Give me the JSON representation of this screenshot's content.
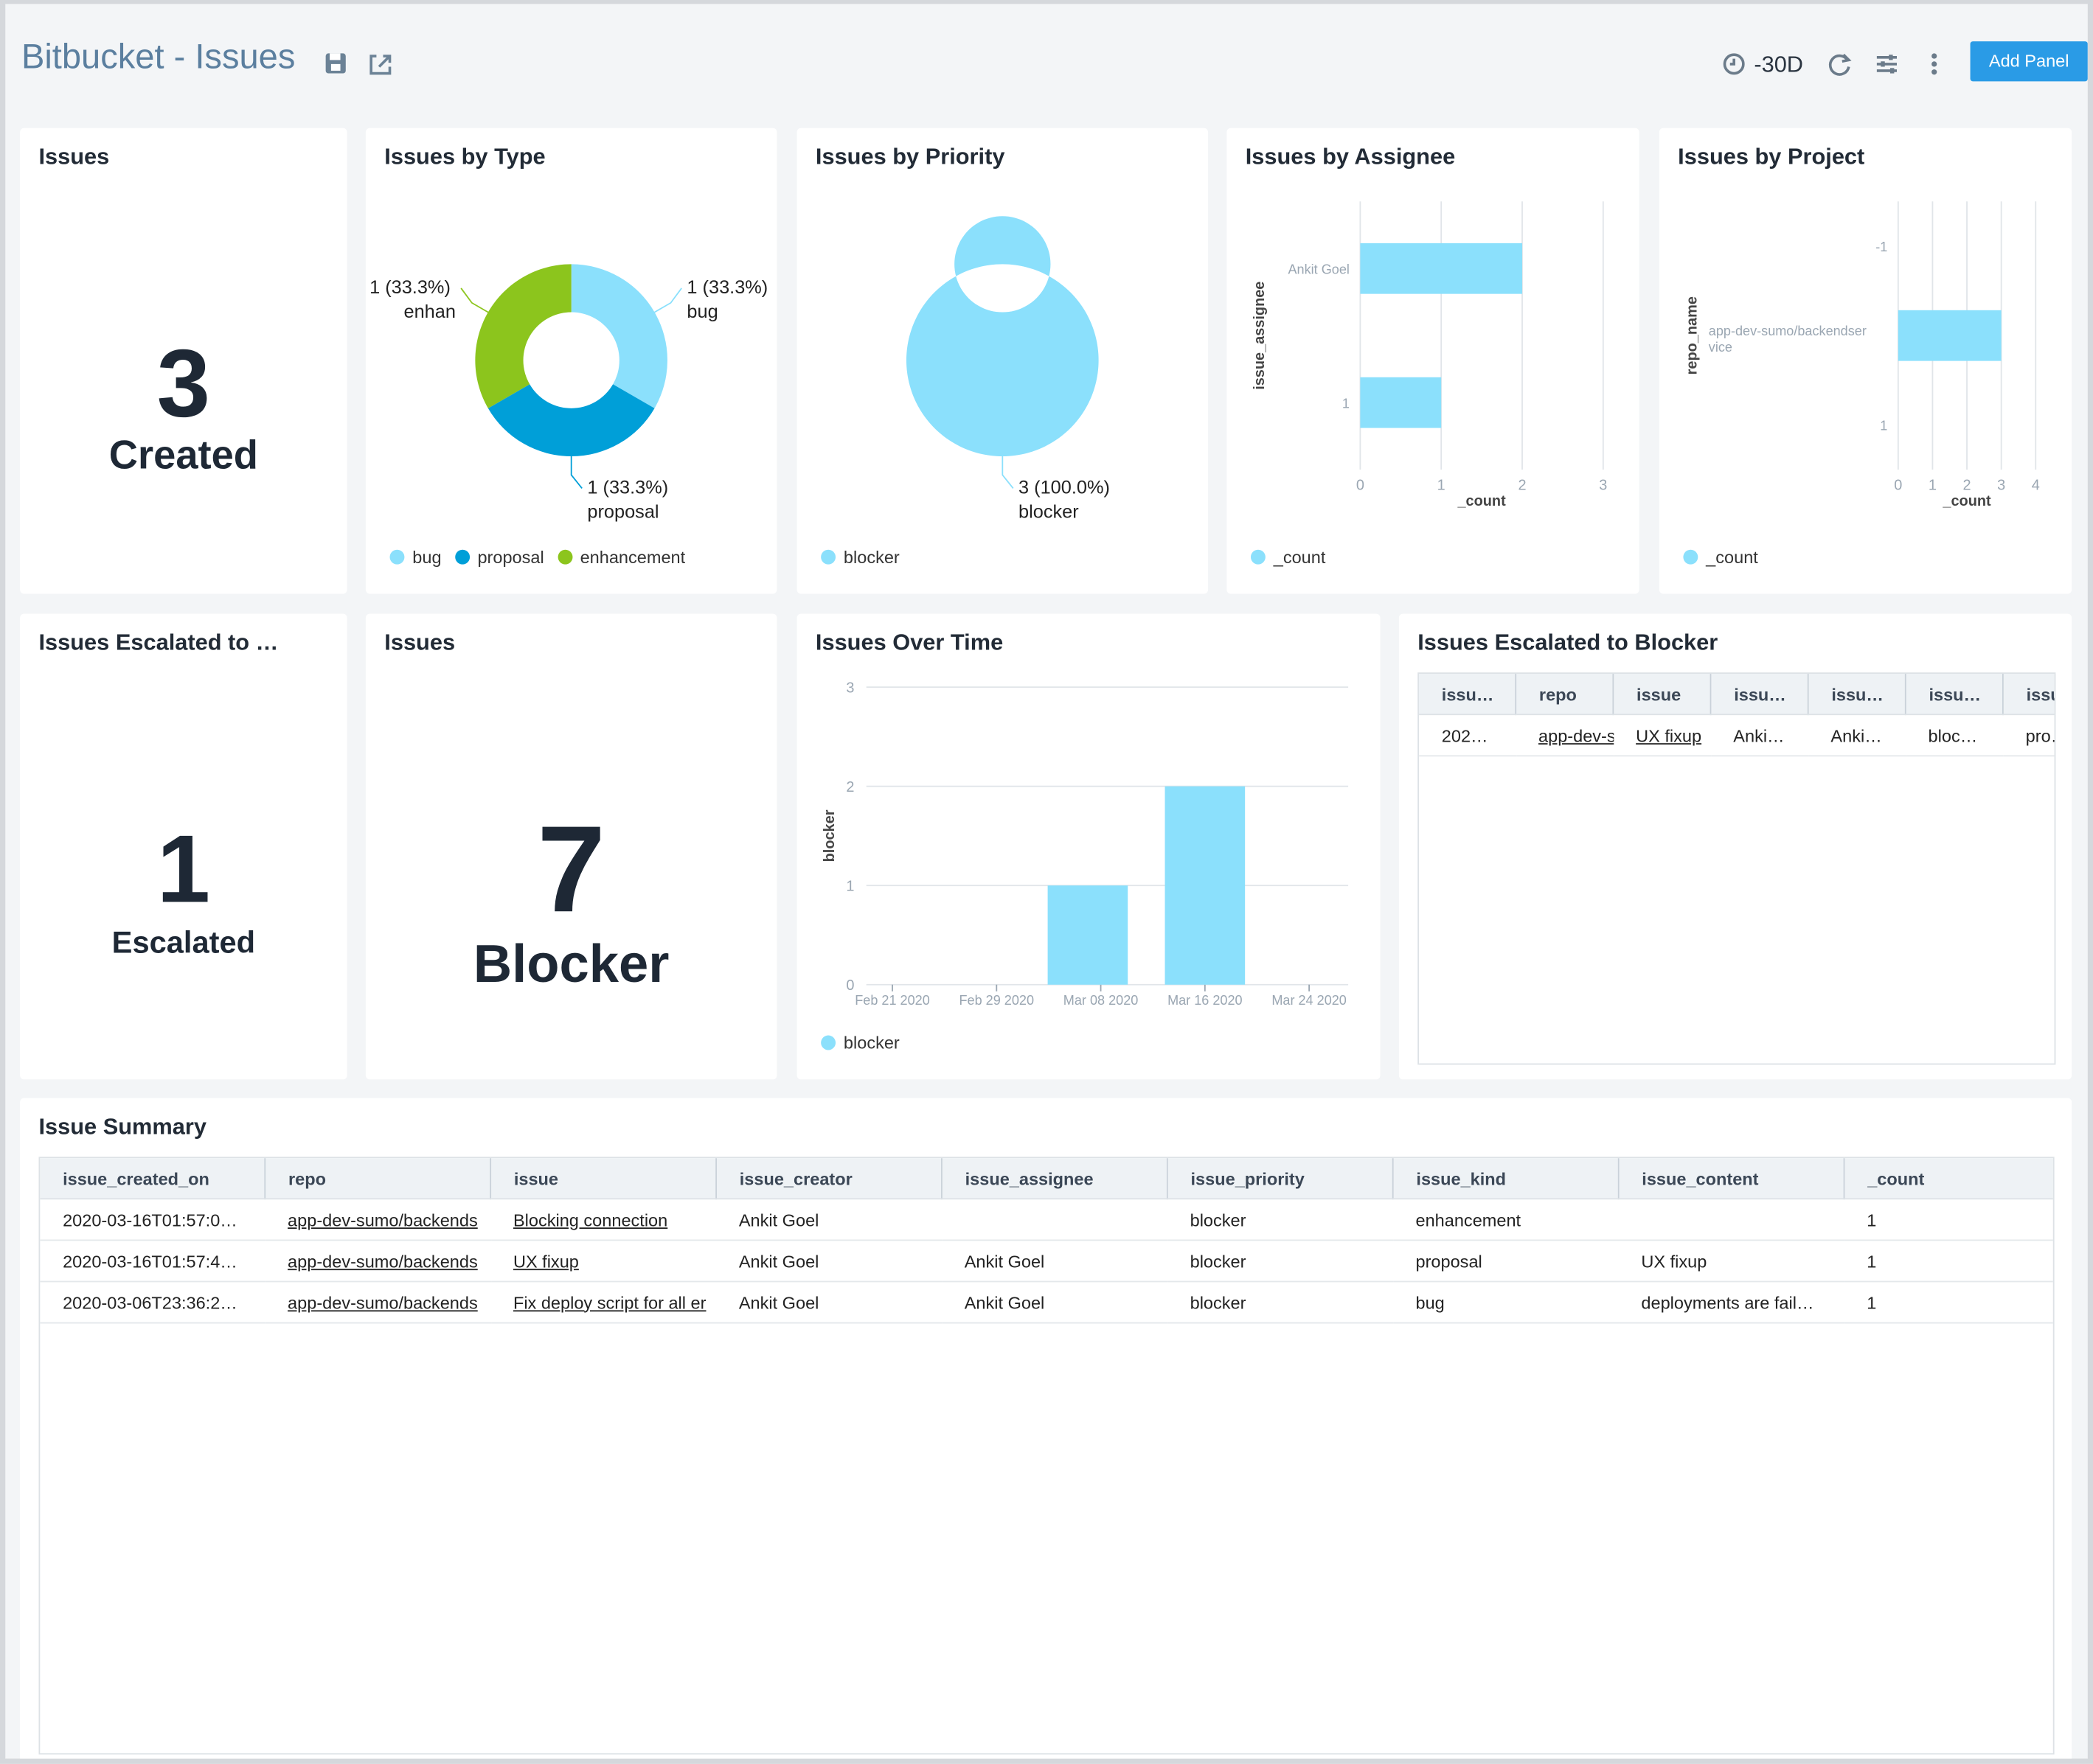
{
  "header": {
    "title": "Bitbucket - Issues",
    "time_range": "-30D",
    "add_panel": "Add Panel"
  },
  "issues_created": {
    "title": "Issues",
    "value": 3,
    "label": "Created"
  },
  "issues_by_type": {
    "title": "Issues by Type",
    "type": "donut",
    "categories": [
      "bug",
      "proposal",
      "enhancement"
    ],
    "values": [
      1,
      1,
      1
    ],
    "value_labels": [
      "1 (33.3%) bug",
      "1 (33.3%) proposal",
      "1 (33.3%) enhan"
    ],
    "colors": [
      "#8be0fc",
      "#009fd8",
      "#8cc51d"
    ]
  },
  "issues_by_priority": {
    "title": "Issues by Priority",
    "type": "donut",
    "categories": [
      "blocker"
    ],
    "values": [
      3
    ],
    "value_labels": [
      "3 (100.0%) blocker"
    ],
    "colors": [
      "#8be0fc"
    ]
  },
  "issues_by_assignee": {
    "title": "Issues by Assignee",
    "type": "hbar",
    "categories": [
      "Ankit Goel",
      "1"
    ],
    "series": [
      {
        "name": "_count",
        "color": "#8be0fc",
        "values": [
          2,
          1
        ]
      }
    ],
    "xlabel": "_count",
    "ylabel": "issue_assignee",
    "xlim": [
      0,
      3
    ],
    "xticks": [
      0,
      1,
      2,
      3
    ]
  },
  "issues_by_project": {
    "title": "Issues by Project",
    "type": "hbar",
    "categories": [
      "-1",
      "app-dev-sumo/backendservice",
      "1"
    ],
    "series": [
      {
        "name": "_count",
        "color": "#8be0fc",
        "values": [
          null,
          3,
          null
        ]
      }
    ],
    "xlabel": "_count",
    "ylabel": "repo_name",
    "xlim": [
      0,
      4
    ],
    "xticks": [
      0,
      1,
      2,
      3,
      4
    ]
  },
  "issues_escalated": {
    "title": "Issues Escalated to …",
    "value": 1,
    "label": "Escalated"
  },
  "issues_blocker": {
    "title": "Issues",
    "value": 7,
    "label": "Blocker"
  },
  "issues_over_time": {
    "title": "Issues Over Time",
    "type": "bar",
    "x": [
      "Mar 07 2020",
      "Mar 16 2020"
    ],
    "series": [
      {
        "name": "blocker",
        "color": "#8be0fc",
        "values": [
          1,
          2
        ]
      }
    ],
    "ylabel": "blocker",
    "xlim": [
      "Feb 19 2020",
      "Mar 27 2020"
    ],
    "xticks": [
      "Feb 21 2020",
      "Feb 29 2020",
      "Mar 08 2020",
      "Mar 16 2020",
      "Mar 24 2020"
    ],
    "ylim": [
      0,
      3
    ],
    "yticks": [
      0,
      1,
      2,
      3
    ],
    "grid": true
  },
  "escalated_table": {
    "title": "Issues Escalated to Blocker",
    "link_columns": [
      1,
      2
    ],
    "columns": [
      "issu…",
      "repo",
      "issue",
      "issu…",
      "issu…",
      "issu…",
      "issu."
    ],
    "rows": [
      [
        "202…",
        "app-dev-s",
        "UX fixup",
        "Anki…",
        "Anki…",
        "bloc…",
        "pro…"
      ]
    ]
  },
  "issue_summary": {
    "title": "Issue Summary",
    "link_columns": [
      1,
      2
    ],
    "columns": [
      "issue_created_on",
      "repo",
      "issue",
      "issue_creator",
      "issue_assignee",
      "issue_priority",
      "issue_kind",
      "issue_content",
      "_count"
    ],
    "rows": [
      [
        "2020-03-16T01:57:0…",
        "app-dev-sumo/backends",
        "Blocking connection",
        "Ankit Goel",
        "",
        "blocker",
        "enhancement",
        "",
        "1"
      ],
      [
        "2020-03-16T01:57:4…",
        "app-dev-sumo/backends",
        "UX fixup",
        "Ankit Goel",
        "Ankit Goel",
        "blocker",
        "proposal",
        "UX fixup",
        "1"
      ],
      [
        "2020-03-06T23:36:2…",
        "app-dev-sumo/backends",
        "Fix deploy script for all er",
        "Ankit Goel",
        "Ankit Goel",
        "blocker",
        "bug",
        "deployments are fail…",
        "1"
      ]
    ]
  }
}
